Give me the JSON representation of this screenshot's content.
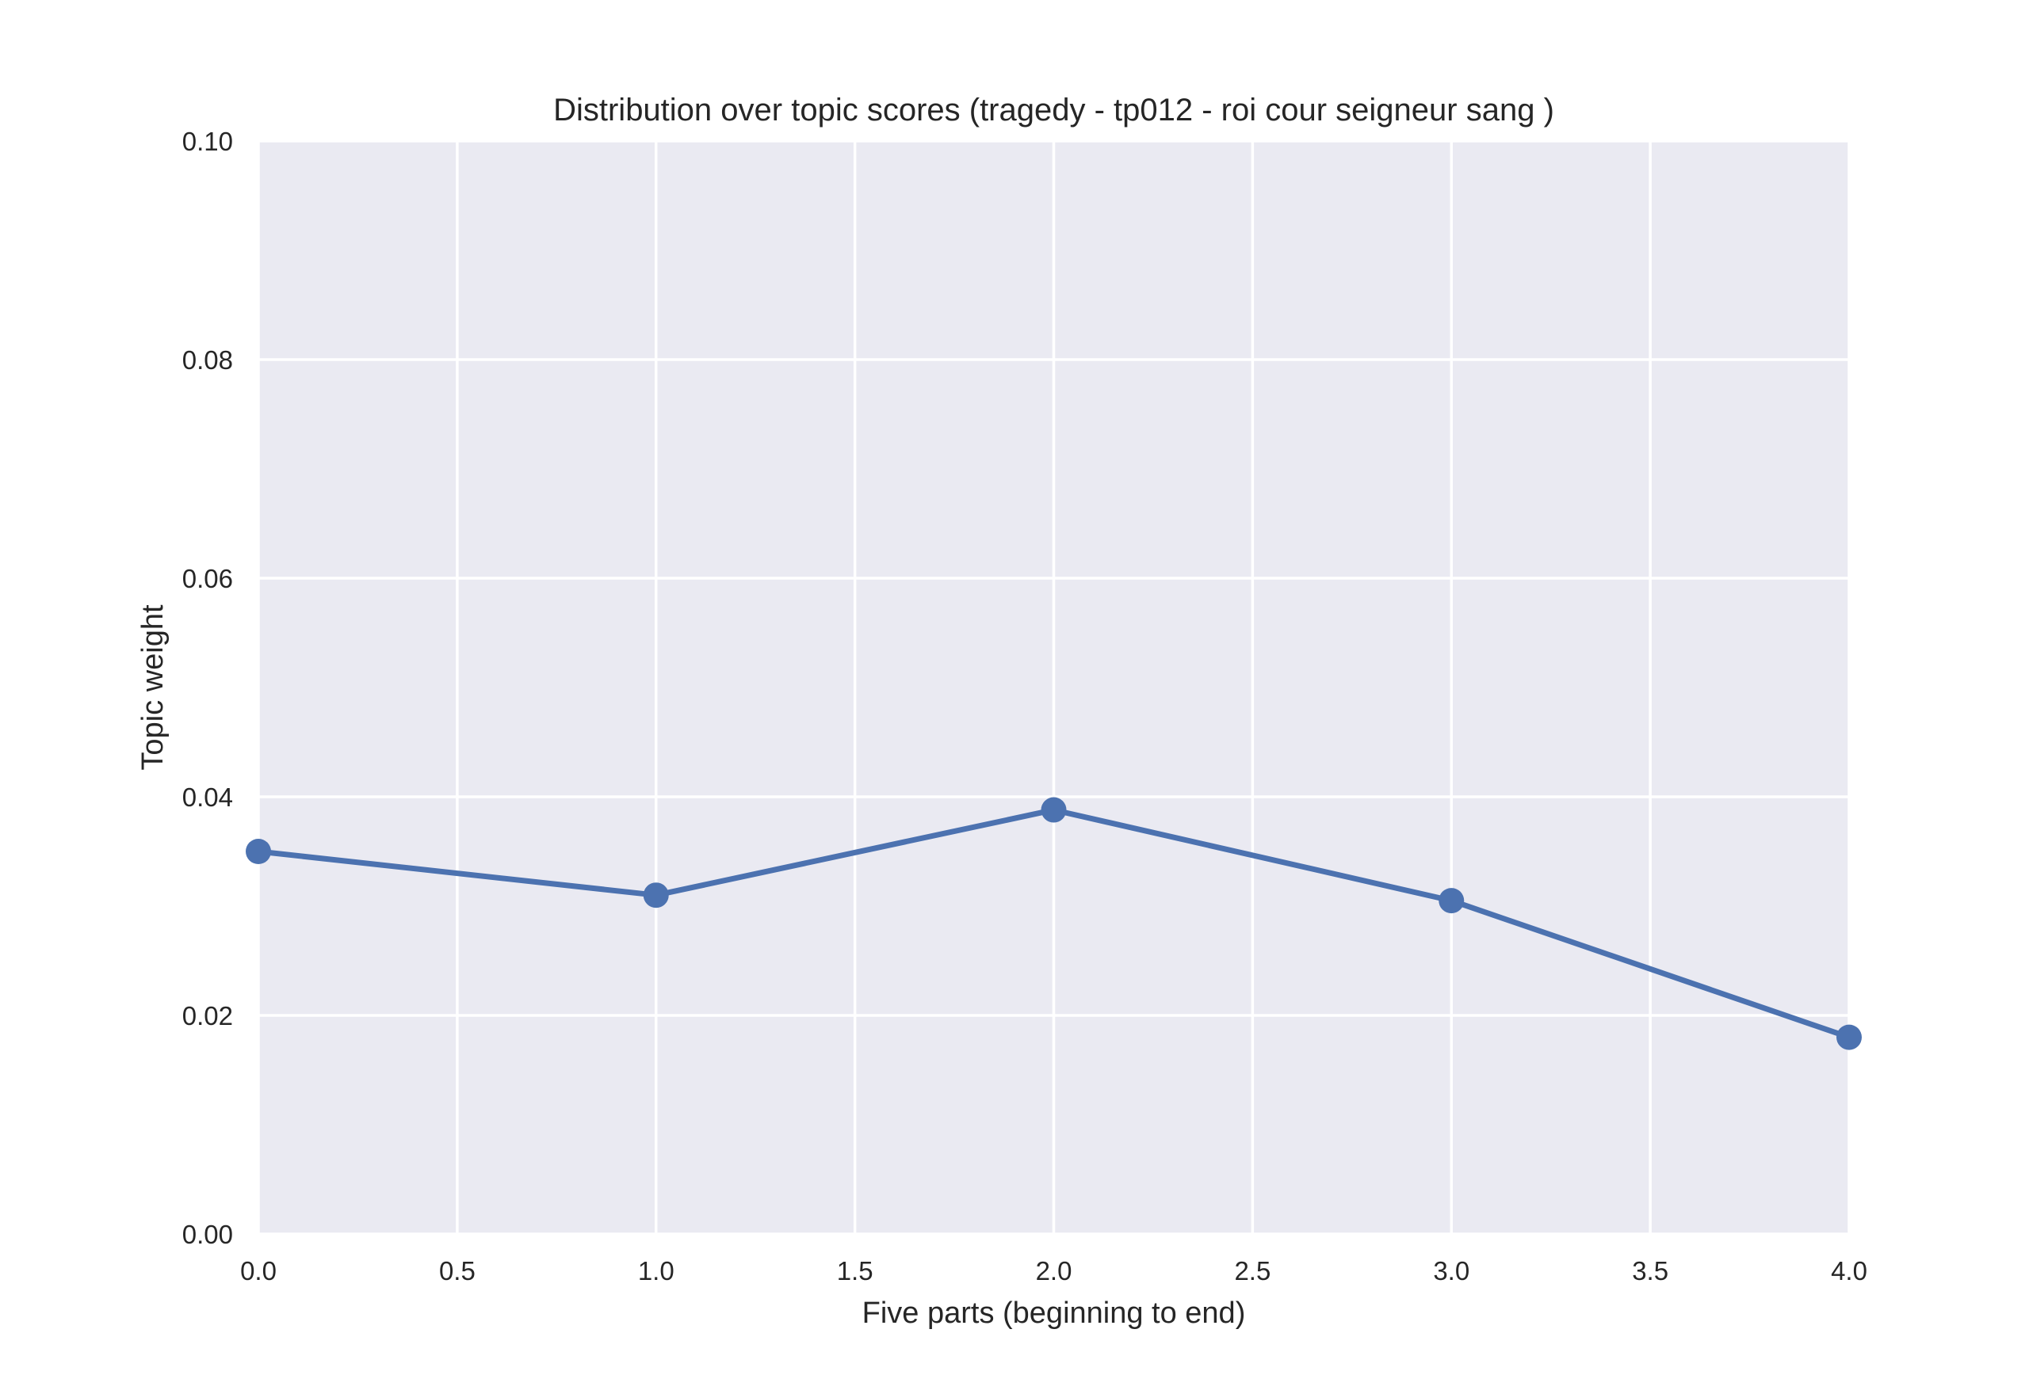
{
  "chart_data": {
    "type": "line",
    "title": "Distribution over topic scores (tragedy - tp012 - roi cour seigneur sang )",
    "xlabel": "Five parts (beginning to end)",
    "ylabel": "Topic weight",
    "xlim": [
      0,
      4
    ],
    "ylim": [
      0,
      0.1
    ],
    "x_ticks": [
      "0.0",
      "0.5",
      "1.0",
      "1.5",
      "2.0",
      "2.5",
      "3.0",
      "3.5",
      "4.0"
    ],
    "y_ticks": [
      "0.00",
      "0.02",
      "0.04",
      "0.06",
      "0.08",
      "0.10"
    ],
    "grid": true,
    "series": [
      {
        "x": [
          0,
          1,
          2,
          3,
          4
        ],
        "values": [
          0.035,
          0.031,
          0.0388,
          0.0305,
          0.018
        ]
      }
    ],
    "colors": {
      "plot_background": "#EAEAF2",
      "grid": "#FFFFFF",
      "line": "#4C72B0"
    }
  }
}
